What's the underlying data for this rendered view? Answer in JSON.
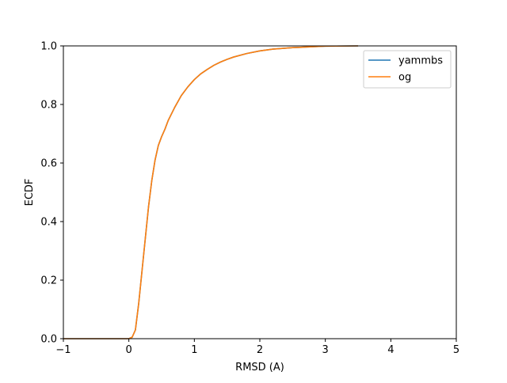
{
  "chart_data": {
    "type": "line",
    "title": "",
    "xlabel": "RMSD (A)",
    "ylabel": "ECDF",
    "xlim": [
      -1,
      5
    ],
    "ylim": [
      0.0,
      1.0
    ],
    "xticks": [
      -1,
      0,
      1,
      2,
      3,
      4,
      5
    ],
    "xtick_labels": [
      "−1",
      "0",
      "1",
      "2",
      "3",
      "4",
      "5"
    ],
    "yticks": [
      0.0,
      0.2,
      0.4,
      0.6,
      0.8,
      1.0
    ],
    "ytick_labels": [
      "0.0",
      "0.2",
      "0.4",
      "0.6",
      "0.8",
      "1.0"
    ],
    "grid": false,
    "legend_position": "top-right",
    "series": [
      {
        "name": "yammbs",
        "color": "#1f77b4",
        "x": [
          0.0,
          0.05,
          0.1,
          0.15,
          0.2,
          0.25,
          0.3,
          0.35,
          0.4,
          0.45,
          0.5,
          0.55,
          0.6,
          0.7,
          0.8,
          0.9,
          1.0,
          1.1,
          1.2,
          1.3,
          1.4,
          1.5,
          1.6,
          1.8,
          2.0,
          2.2,
          2.5,
          2.8,
          3.0,
          3.5
        ],
        "y": [
          0.0,
          0.005,
          0.03,
          0.12,
          0.23,
          0.34,
          0.45,
          0.54,
          0.61,
          0.66,
          0.69,
          0.715,
          0.745,
          0.79,
          0.83,
          0.86,
          0.885,
          0.905,
          0.92,
          0.934,
          0.945,
          0.954,
          0.962,
          0.974,
          0.983,
          0.989,
          0.994,
          0.997,
          0.999,
          1.0
        ]
      },
      {
        "name": "og",
        "color": "#ff7f0e",
        "x": [
          0.0,
          0.05,
          0.1,
          0.15,
          0.2,
          0.25,
          0.3,
          0.35,
          0.4,
          0.45,
          0.5,
          0.55,
          0.6,
          0.7,
          0.8,
          0.9,
          1.0,
          1.1,
          1.2,
          1.3,
          1.4,
          1.5,
          1.6,
          1.8,
          2.0,
          2.2,
          2.5,
          2.8,
          3.0,
          3.5
        ],
        "y": [
          0.0,
          0.005,
          0.03,
          0.12,
          0.23,
          0.34,
          0.45,
          0.54,
          0.61,
          0.66,
          0.69,
          0.715,
          0.745,
          0.79,
          0.83,
          0.86,
          0.885,
          0.905,
          0.92,
          0.934,
          0.945,
          0.954,
          0.962,
          0.974,
          0.983,
          0.989,
          0.994,
          0.997,
          0.999,
          1.0
        ]
      }
    ]
  }
}
